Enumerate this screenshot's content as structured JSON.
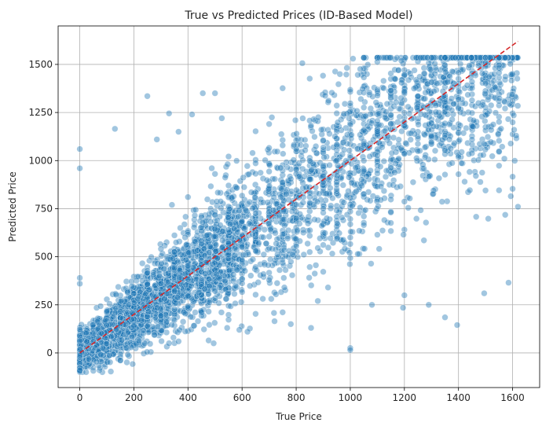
{
  "chart_data": {
    "type": "scatter",
    "title": "True vs Predicted Prices (ID-Based Model)",
    "xlabel": "True Price",
    "ylabel": "Predicted Price",
    "xlim": [
      -80,
      1700
    ],
    "ylim": [
      -180,
      1700
    ],
    "x_ticks": [
      0,
      200,
      400,
      600,
      800,
      1000,
      1200,
      1400,
      1600
    ],
    "y_ticks": [
      0,
      250,
      500,
      750,
      1000,
      1250,
      1500
    ],
    "grid": true,
    "colors": {
      "points": "#1f77b4",
      "reference_line": "#d62728",
      "grid": "#b0b0b0"
    },
    "reference_line": {
      "style": "dashed",
      "x": [
        0,
        1620
      ],
      "y": [
        0,
        1620
      ]
    },
    "approx_point_count": 4500,
    "scatter_trend": "y ≈ x, band widening with price",
    "notable_points": [
      {
        "x": 0,
        "y": 1060
      },
      {
        "x": 0,
        "y": 960
      },
      {
        "x": 0,
        "y": 390
      },
      {
        "x": 0,
        "y": 360
      },
      {
        "x": 0,
        "y": -90
      },
      {
        "x": 130,
        "y": 1165
      },
      {
        "x": 250,
        "y": 1335
      },
      {
        "x": 285,
        "y": 1110
      },
      {
        "x": 330,
        "y": 1245
      },
      {
        "x": 365,
        "y": 1150
      },
      {
        "x": 415,
        "y": 1240
      },
      {
        "x": 455,
        "y": 1350
      },
      {
        "x": 500,
        "y": 1350
      },
      {
        "x": 525,
        "y": 1220
      },
      {
        "x": 240,
        "y": 50
      },
      {
        "x": 330,
        "y": 50
      },
      {
        "x": 365,
        "y": 60
      },
      {
        "x": 495,
        "y": 50
      },
      {
        "x": 590,
        "y": 120
      },
      {
        "x": 620,
        "y": 110
      },
      {
        "x": 720,
        "y": 165
      },
      {
        "x": 780,
        "y": 150
      },
      {
        "x": 855,
        "y": 130
      },
      {
        "x": 880,
        "y": 270
      },
      {
        "x": 1000,
        "y": 25
      },
      {
        "x": 1000,
        "y": 15
      },
      {
        "x": 1010,
        "y": 1530
      },
      {
        "x": 1080,
        "y": 250
      },
      {
        "x": 1195,
        "y": 235
      },
      {
        "x": 1200,
        "y": 300
      },
      {
        "x": 1290,
        "y": 250
      },
      {
        "x": 1350,
        "y": 185
      },
      {
        "x": 1395,
        "y": 145
      },
      {
        "x": 1495,
        "y": 310
      },
      {
        "x": 1585,
        "y": 365
      },
      {
        "x": 1620,
        "y": 760
      }
    ]
  }
}
